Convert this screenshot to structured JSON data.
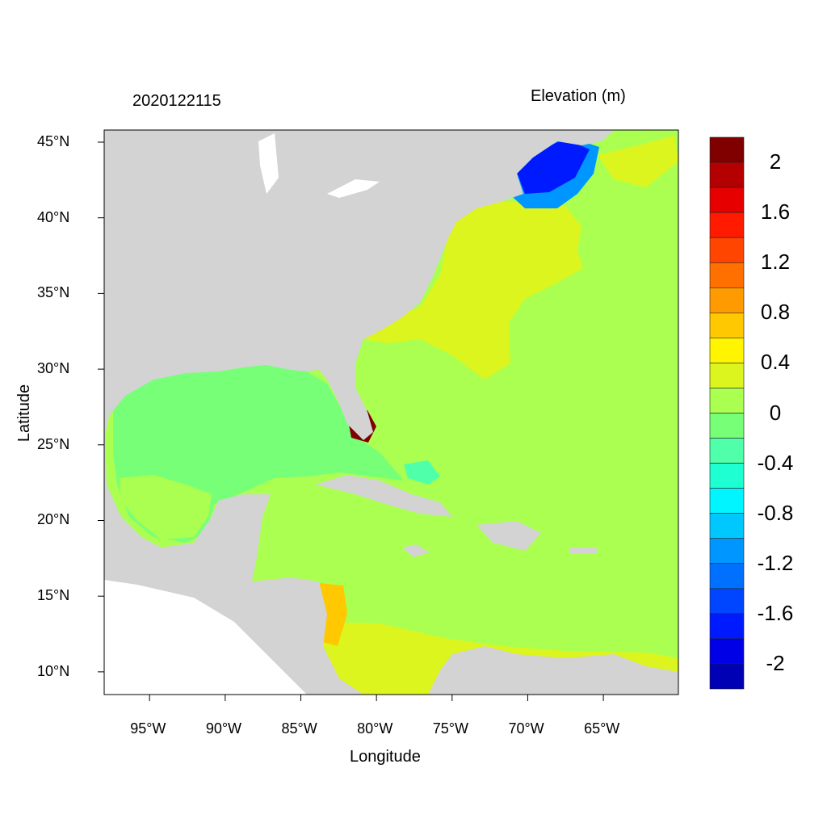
{
  "chart_data": {
    "type": "heatmap",
    "title_left": "2020122115",
    "title_right": "Elevation (m)",
    "xlabel": "Longitude",
    "ylabel": "Latitude",
    "xlim": [
      -98,
      -60
    ],
    "ylim": [
      8.5,
      45.9
    ],
    "x_ticks": [
      -95,
      -90,
      -85,
      -80,
      -75,
      -70,
      -65
    ],
    "x_tick_labels": [
      "95°W",
      "90°W",
      "85°W",
      "80°W",
      "75°W",
      "70°W",
      "65°W"
    ],
    "y_ticks": [
      45,
      40,
      35,
      30,
      25,
      20,
      15,
      10
    ],
    "y_tick_labels": [
      "45°N",
      "40°N",
      "35°N",
      "30°N",
      "25°N",
      "20°N",
      "15°N",
      "10°N"
    ],
    "colorbar": {
      "levels_labels": [
        "2",
        "1.6",
        "1.2",
        "0.8",
        "0.4",
        "0",
        "-0.4",
        "-0.8",
        "-1.2",
        "-1.6",
        "-2"
      ],
      "colors": [
        "#800000",
        "#b40000",
        "#e60000",
        "#ff1a00",
        "#ff4500",
        "#ff7000",
        "#ff9a00",
        "#ffc800",
        "#fff500",
        "#dcf51e",
        "#aaff50",
        "#78ff78",
        "#50ffaa",
        "#1effd2",
        "#00f5ff",
        "#00c8ff",
        "#0096ff",
        "#0070ff",
        "#0045ff",
        "#001aff",
        "#0000e6",
        "#0000b4"
      ]
    },
    "land_color": "#d3d3d3"
  }
}
